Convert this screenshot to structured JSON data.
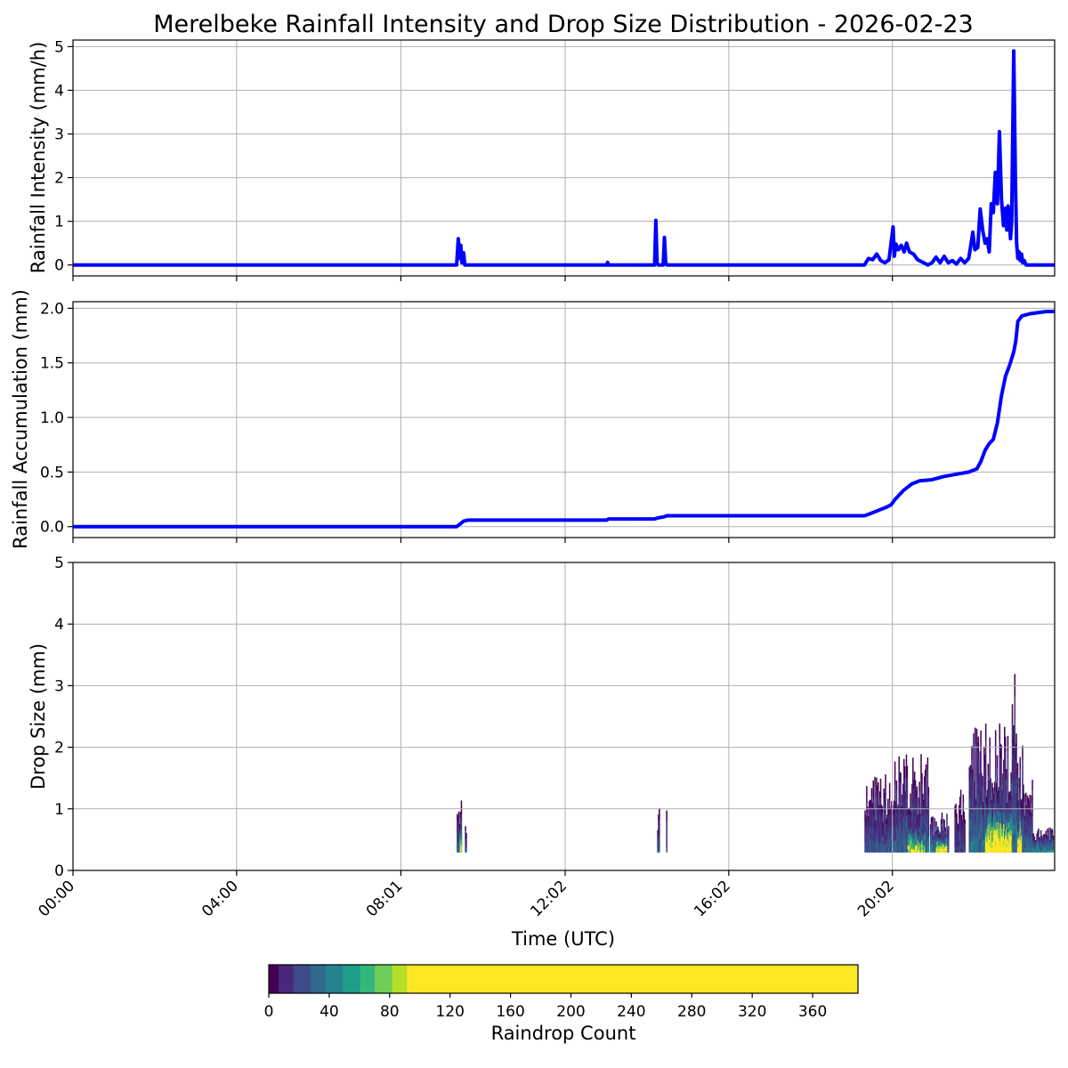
{
  "title": "Merelbeke Rainfall Intensity and Drop Size Distribution - 2026-02-23",
  "colors": {
    "line": "#0000ff",
    "grid": "#b0b0b0",
    "viridis": [
      "#440154",
      "#482878",
      "#3e4a89",
      "#31688e",
      "#26828e",
      "#1f9e89",
      "#35b779",
      "#6ece58",
      "#b5de2b",
      "#fde725"
    ]
  },
  "chart_data": [
    {
      "type": "line",
      "name": "intensity",
      "ylabel": "Rainfall Intensity (mm/h)",
      "xlim": [
        0,
        24
      ],
      "ylim": [
        -0.25,
        5.15
      ],
      "yticks": [
        0,
        1,
        2,
        3,
        4,
        5
      ],
      "grid": true,
      "x": [
        0,
        9.38,
        9.42,
        9.45,
        9.48,
        9.51,
        9.55,
        9.58,
        9.6,
        9.63,
        9.66,
        13.05,
        13.07,
        13.09,
        14.22,
        14.25,
        14.28,
        14.31,
        14.43,
        14.46,
        14.49,
        14.52,
        19.35,
        19.45,
        19.55,
        19.65,
        19.75,
        19.85,
        19.95,
        20.05,
        20.08,
        20.12,
        20.18,
        20.25,
        20.32,
        20.38,
        20.45,
        20.55,
        20.65,
        20.8,
        20.9,
        21.0,
        21.1,
        21.2,
        21.3,
        21.4,
        21.5,
        21.6,
        21.7,
        21.8,
        21.9,
        22.0,
        22.05,
        22.12,
        22.18,
        22.24,
        22.3,
        22.35,
        22.4,
        22.45,
        22.5,
        22.55,
        22.6,
        22.65,
        22.7,
        22.75,
        22.8,
        22.83,
        22.86,
        22.89,
        22.92,
        22.95,
        23.0,
        23.04,
        23.07,
        23.1,
        23.13,
        23.16,
        23.19,
        23.22,
        23.26,
        23.3,
        23.34,
        23.38,
        23.42,
        23.46,
        23.5,
        23.55,
        23.62,
        23.68,
        23.75,
        23.85,
        24.0
      ],
      "y": [
        0,
        0,
        0.6,
        0.15,
        0.45,
        0.05,
        0.28,
        0,
        0,
        0,
        0,
        0,
        0.06,
        0,
        0,
        1.02,
        0.05,
        0,
        0,
        0.63,
        0.05,
        0,
        0,
        0.15,
        0.12,
        0.25,
        0.1,
        0.05,
        0.12,
        0.87,
        0.2,
        0.48,
        0.35,
        0.45,
        0.3,
        0.5,
        0.3,
        0.25,
        0.12,
        0.05,
        0,
        0.05,
        0.18,
        0.05,
        0.2,
        0.05,
        0.1,
        0.02,
        0.15,
        0.05,
        0.15,
        0.75,
        0.35,
        0.4,
        1.28,
        0.8,
        0.5,
        0.6,
        0.3,
        1.4,
        1.2,
        2.12,
        1.4,
        3.05,
        1.5,
        0.9,
        1.3,
        0.8,
        1.35,
        1.1,
        0.6,
        1.0,
        4.9,
        2.0,
        0.5,
        0.15,
        0.3,
        0.1,
        0.25,
        0.05,
        0.1,
        0,
        0,
        0,
        0,
        0,
        0,
        0,
        0,
        0,
        0,
        0,
        0
      ]
    },
    {
      "type": "line",
      "name": "accumulation",
      "ylabel": "Rainfall Accumulation (mm)",
      "xlim": [
        0,
        24
      ],
      "ylim": [
        -0.1,
        2.06
      ],
      "yticks": [
        0.0,
        0.5,
        1.0,
        1.5,
        2.0
      ],
      "ytick_labels": [
        "0.0",
        "0.5",
        "1.0",
        "1.5",
        "2.0"
      ],
      "grid": true,
      "x": [
        0,
        9.38,
        9.45,
        9.55,
        9.66,
        13.05,
        13.09,
        14.22,
        14.3,
        14.45,
        14.52,
        19.35,
        19.5,
        19.7,
        19.9,
        20.0,
        20.1,
        20.3,
        20.5,
        20.7,
        21.0,
        21.3,
        21.6,
        21.9,
        22.1,
        22.2,
        22.3,
        22.4,
        22.5,
        22.6,
        22.7,
        22.8,
        22.9,
        23.0,
        23.05,
        23.1,
        23.2,
        23.4,
        23.6,
        23.8,
        24.0
      ],
      "y": [
        0,
        0,
        0.02,
        0.05,
        0.06,
        0.06,
        0.07,
        0.07,
        0.08,
        0.09,
        0.1,
        0.1,
        0.12,
        0.15,
        0.18,
        0.2,
        0.25,
        0.33,
        0.39,
        0.42,
        0.43,
        0.46,
        0.48,
        0.5,
        0.53,
        0.6,
        0.7,
        0.76,
        0.8,
        0.95,
        1.2,
        1.38,
        1.48,
        1.6,
        1.7,
        1.88,
        1.93,
        1.95,
        1.96,
        1.97,
        1.97
      ]
    },
    {
      "type": "heatmap",
      "name": "dsd",
      "xlabel": "Time (UTC)",
      "ylabel": "Drop Size (mm)",
      "xlim": [
        0,
        24
      ],
      "ylim": [
        0,
        5
      ],
      "yticks": [
        0,
        1,
        2,
        3,
        4,
        5
      ],
      "xticks": [
        0,
        4,
        8.017,
        12.033,
        16.033,
        20.033
      ],
      "xtick_labels": [
        "00:00",
        "04:00",
        "08:01",
        "12:02",
        "16:02",
        "20:02"
      ],
      "grid": true,
      "events": [
        {
          "t0": 9.38,
          "t1": 9.48,
          "top": 1.2,
          "level": 30
        },
        {
          "t0": 9.45,
          "t1": 9.47,
          "top": 0.9,
          "level": 110
        },
        {
          "t0": 9.58,
          "t1": 9.62,
          "top": 1.05,
          "level": 25
        },
        {
          "t0": 14.28,
          "t1": 14.33,
          "top": 1.2,
          "level": 25
        },
        {
          "t0": 14.5,
          "t1": 14.52,
          "top": 1.05,
          "level": 20
        },
        {
          "t0": 19.35,
          "t1": 20.0,
          "top": 1.6,
          "level": 25
        },
        {
          "t0": 20.0,
          "t1": 20.9,
          "top": 1.9,
          "level": 30
        },
        {
          "t0": 20.4,
          "t1": 20.8,
          "top": 0.8,
          "level": 90
        },
        {
          "t0": 20.95,
          "t1": 21.4,
          "top": 0.95,
          "level": 40
        },
        {
          "t0": 21.1,
          "t1": 21.35,
          "top": 0.6,
          "level": 130
        },
        {
          "t0": 21.55,
          "t1": 21.8,
          "top": 1.4,
          "level": 20
        },
        {
          "t0": 21.9,
          "t1": 23.2,
          "top": 2.4,
          "level": 35
        },
        {
          "t0": 22.3,
          "t1": 23.2,
          "top": 1.1,
          "level": 150
        },
        {
          "t0": 22.95,
          "t1": 23.05,
          "top": 3.25,
          "level": 40
        },
        {
          "t0": 23.2,
          "t1": 23.45,
          "top": 1.5,
          "level": 30
        },
        {
          "t0": 23.45,
          "t1": 23.95,
          "top": 0.7,
          "level": 45
        }
      ]
    }
  ],
  "colorbar": {
    "label": "Raindrop Count",
    "range": [
      0,
      390
    ],
    "saturate_at": 98,
    "ticks": [
      0,
      40,
      80,
      120,
      160,
      200,
      240,
      280,
      320,
      360
    ],
    "tick_labels": [
      "0",
      "40",
      "80",
      "120",
      "160",
      "200",
      "240",
      "280",
      "320",
      "360"
    ]
  }
}
